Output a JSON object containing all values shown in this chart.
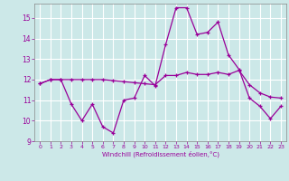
{
  "xlabel": "Windchill (Refroidissement éolien,°C)",
  "background_color": "#cce8e8",
  "grid_color": "#ffffff",
  "line_color": "#990099",
  "spine_color": "#888888",
  "xlim": [
    -0.5,
    23.5
  ],
  "ylim": [
    9,
    15.7
  ],
  "yticks": [
    9,
    10,
    11,
    12,
    13,
    14,
    15
  ],
  "xticks": [
    0,
    1,
    2,
    3,
    4,
    5,
    6,
    7,
    8,
    9,
    10,
    11,
    12,
    13,
    14,
    15,
    16,
    17,
    18,
    19,
    20,
    21,
    22,
    23
  ],
  "line1_x": [
    0,
    1,
    2,
    3,
    4,
    5,
    6,
    7,
    8,
    9,
    10,
    11,
    12,
    13,
    14,
    15,
    16,
    17,
    18,
    19,
    20,
    21,
    22,
    23
  ],
  "line1_y": [
    11.8,
    12.0,
    12.0,
    10.8,
    10.0,
    10.8,
    9.7,
    9.4,
    11.0,
    11.1,
    12.2,
    11.7,
    13.7,
    15.5,
    15.5,
    14.2,
    14.3,
    14.8,
    13.2,
    12.5,
    11.1,
    10.7,
    10.1,
    10.7
  ],
  "line2_x": [
    0,
    1,
    2,
    3,
    4,
    5,
    6,
    7,
    8,
    9,
    10,
    11,
    12,
    13,
    14,
    15,
    16,
    17,
    18,
    19,
    20,
    21,
    22,
    23
  ],
  "line2_y": [
    11.8,
    12.0,
    12.0,
    12.0,
    12.0,
    12.0,
    12.0,
    11.95,
    11.9,
    11.85,
    11.8,
    11.75,
    12.2,
    12.2,
    12.35,
    12.25,
    12.25,
    12.35,
    12.25,
    12.45,
    11.75,
    11.35,
    11.15,
    11.1
  ]
}
